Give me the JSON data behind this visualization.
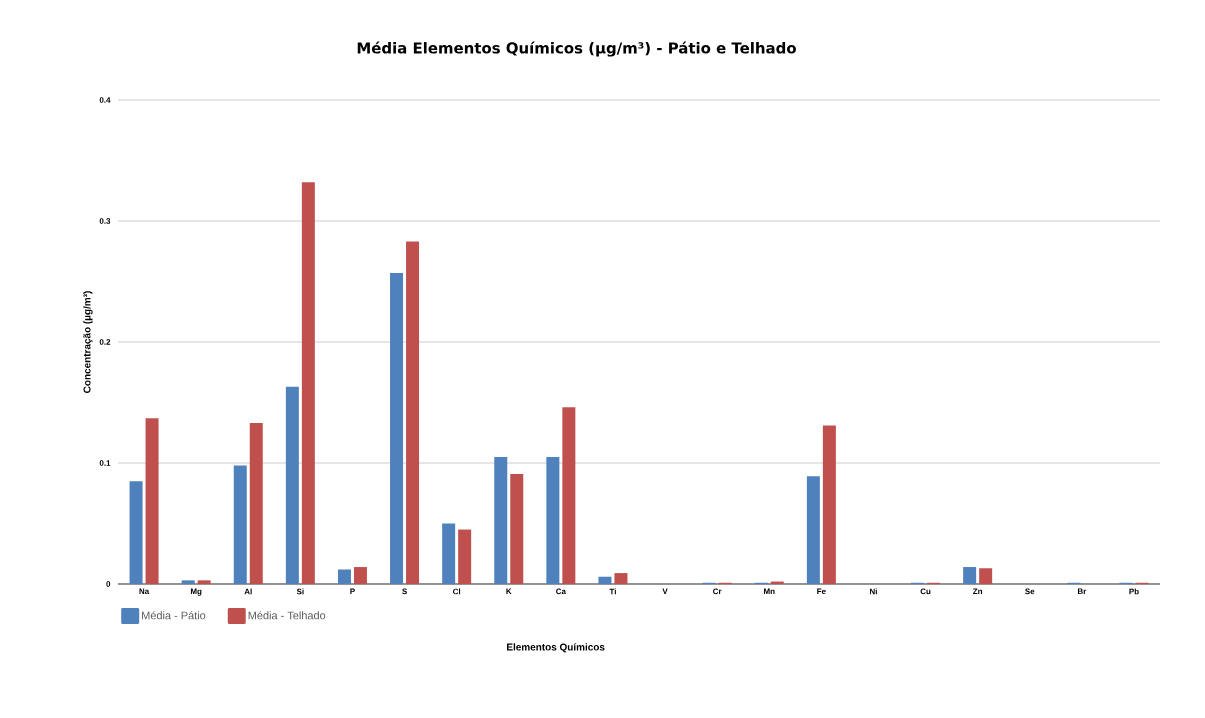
{
  "chart_data": {
    "type": "bar",
    "title": "Média Elementos Químicos (µg/m³) - Pátio e Telhado",
    "xlabel": "Elementos Químicos",
    "ylabel": "Concentração (µg/m³)",
    "categories": [
      "Na",
      "Mg",
      "Al",
      "Si",
      "P",
      "S",
      "Cl",
      "K",
      "Ca",
      "Ti",
      "V",
      "Cr",
      "Mn",
      "Fe",
      "Ni",
      "Cu",
      "Zn",
      "Se",
      "Br",
      "Pb"
    ],
    "series": [
      {
        "name": "Média - Pátio",
        "color": "#4f81bd",
        "values": [
          0.085,
          0.003,
          0.098,
          0.163,
          0.012,
          0.257,
          0.05,
          0.105,
          0.105,
          0.006,
          0,
          0.001,
          0.001,
          0.089,
          0,
          0.001,
          0.014,
          0,
          0.001,
          0.001
        ]
      },
      {
        "name": "Média - Telhado",
        "color": "#c0504d",
        "values": [
          0.137,
          0.003,
          0.133,
          0.332,
          0.014,
          0.283,
          0.045,
          0.091,
          0.146,
          0.009,
          0,
          0.001,
          0.002,
          0.131,
          0,
          0.001,
          0.013,
          0,
          0,
          0.001
        ]
      }
    ],
    "ylim": [
      0,
      0.4
    ],
    "yticks": [
      0,
      0.1,
      0.2,
      0.3,
      0.4
    ],
    "grid": "y",
    "legend": "bottom left"
  }
}
